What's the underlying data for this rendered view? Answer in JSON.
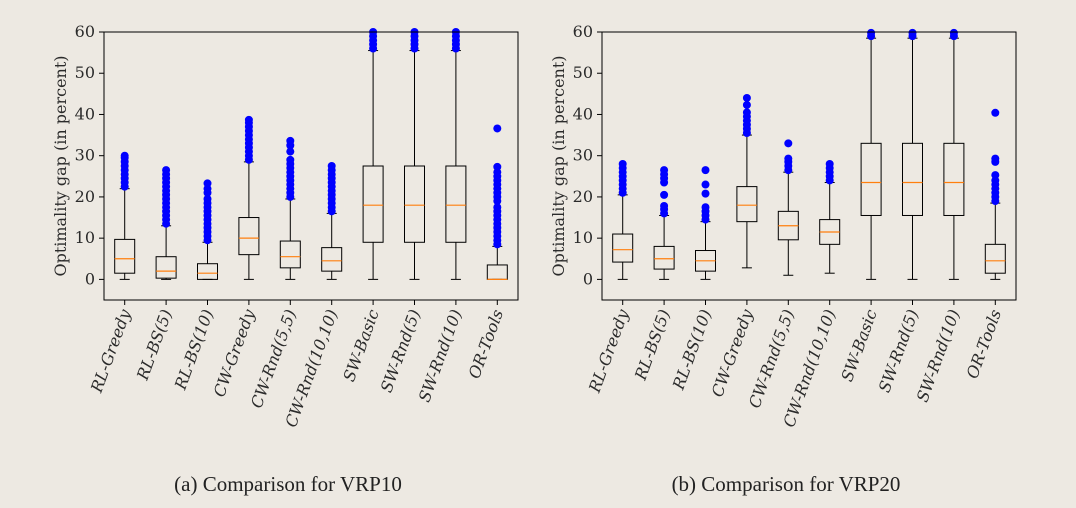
{
  "chart_data": [
    {
      "type": "box",
      "caption": "(a) Comparison for VRP10",
      "ylabel": "Optimality gap (in percent)",
      "ylim": [
        -5,
        60
      ],
      "yticks": [
        0,
        10,
        20,
        30,
        40,
        50,
        60
      ],
      "categories": [
        "RL-Greedy",
        "RL-BS(5)",
        "RL-BS(10)",
        "CW-Greedy",
        "CW-Rnd(5,5)",
        "CW-Rnd(10,10)",
        "SW-Basic",
        "SW-Rnd(5)",
        "SW-Rnd(10)",
        "OR-Tools"
      ],
      "boxes": [
        {
          "whisker_low": 0,
          "q1": 1.5,
          "median": 5,
          "q3": 9.7,
          "whisker_high": 22,
          "outliers": [
            22.5,
            23.5,
            24.5,
            25.5,
            26.5,
            27.5,
            28.5,
            29.5,
            30
          ]
        },
        {
          "whisker_low": 0,
          "q1": 0.3,
          "median": 2,
          "q3": 5.5,
          "whisker_high": 13,
          "outliers": [
            13.5,
            14.5,
            15.5,
            16.5,
            17.5,
            18.5,
            19.5,
            20.5,
            21.5,
            22.5,
            23.5,
            24.5,
            25.5,
            26.5
          ]
        },
        {
          "whisker_low": 0,
          "q1": 0,
          "median": 1.5,
          "q3": 3.8,
          "whisker_high": 9,
          "outliers": [
            9.5,
            10.5,
            11.5,
            12.5,
            13.5,
            14.5,
            15.5,
            16.5,
            17.5,
            18.5,
            19.5,
            21,
            22,
            23.3
          ]
        },
        {
          "whisker_low": 0,
          "q1": 6,
          "median": 10,
          "q3": 15,
          "whisker_high": 28.5,
          "outliers": [
            29,
            30,
            31,
            32,
            33,
            34,
            35,
            36,
            37,
            38,
            38.7
          ]
        },
        {
          "whisker_low": 0,
          "q1": 2.8,
          "median": 5.5,
          "q3": 9.3,
          "whisker_high": 19.5,
          "outliers": [
            20,
            21,
            22,
            23,
            24,
            25,
            26,
            27,
            28,
            29,
            31,
            32.5,
            33.6
          ]
        },
        {
          "whisker_low": 0,
          "q1": 2,
          "median": 4.5,
          "q3": 7.7,
          "whisker_high": 16,
          "outliers": [
            16.5,
            17.5,
            18.5,
            19.5,
            20.5,
            21.5,
            22.5,
            23.5,
            24.5,
            25.5,
            26.5,
            27.5
          ]
        },
        {
          "whisker_low": 0,
          "q1": 9,
          "median": 18,
          "q3": 27.5,
          "whisker_high": 55.5,
          "outliers": [
            56,
            57,
            58,
            59,
            60
          ]
        },
        {
          "whisker_low": 0,
          "q1": 9,
          "median": 18,
          "q3": 27.5,
          "whisker_high": 55.5,
          "outliers": [
            56,
            57,
            58,
            59,
            60
          ]
        },
        {
          "whisker_low": 0,
          "q1": 9,
          "median": 18,
          "q3": 27.5,
          "whisker_high": 55.5,
          "outliers": [
            56,
            57,
            58,
            59,
            60
          ]
        },
        {
          "whisker_low": 0,
          "q1": 0,
          "median": 0,
          "q3": 3.5,
          "whisker_high": 8,
          "outliers": [
            8.5,
            9.5,
            10.5,
            11.5,
            12.5,
            13.5,
            14.5,
            15.5,
            16.5,
            17.5,
            19,
            20,
            21,
            22,
            23,
            24,
            25,
            26,
            27.3,
            36.6
          ]
        }
      ]
    },
    {
      "type": "box",
      "caption": "(b) Comparison for VRP20",
      "ylabel": "Optimality gap (in percent)",
      "ylim": [
        -5,
        60
      ],
      "yticks": [
        0,
        10,
        20,
        30,
        40,
        50,
        60
      ],
      "categories": [
        "RL-Greedy",
        "RL-BS(5)",
        "RL-BS(10)",
        "CW-Greedy",
        "CW-Rnd(5,5)",
        "CW-Rnd(10,10)",
        "SW-Basic",
        "SW-Rnd(5)",
        "SW-Rnd(10)",
        "OR-Tools"
      ],
      "boxes": [
        {
          "whisker_low": 0,
          "q1": 4.2,
          "median": 7.2,
          "q3": 11,
          "whisker_high": 20.5,
          "outliers": [
            21,
            22,
            23,
            24,
            25,
            26,
            27,
            28
          ]
        },
        {
          "whisker_low": 0,
          "q1": 2.5,
          "median": 5,
          "q3": 8,
          "whisker_high": 15.5,
          "outliers": [
            16,
            17,
            17.8,
            20.5,
            23.5,
            24.5,
            25.5,
            26.5
          ]
        },
        {
          "whisker_low": 0,
          "q1": 2,
          "median": 4.5,
          "q3": 7,
          "whisker_high": 14,
          "outliers": [
            14.5,
            15.5,
            16.5,
            17.5,
            20.8,
            23,
            26.5
          ]
        },
        {
          "whisker_low": 2.8,
          "q1": 14,
          "median": 18,
          "q3": 22.5,
          "whisker_high": 35,
          "outliers": [
            35.5,
            36.5,
            37.5,
            38.5,
            39.5,
            40.5,
            42.3,
            44
          ]
        },
        {
          "whisker_low": 1,
          "q1": 9.6,
          "median": 13,
          "q3": 16.5,
          "whisker_high": 26,
          "outliers": [
            26.5,
            27.5,
            28.5,
            29.3,
            33
          ]
        },
        {
          "whisker_low": 1.5,
          "q1": 8.5,
          "median": 11.5,
          "q3": 14.5,
          "whisker_high": 23.5,
          "outliers": [
            24,
            25,
            26,
            27,
            28
          ]
        },
        {
          "whisker_low": 0,
          "q1": 15.5,
          "median": 23.5,
          "q3": 33,
          "whisker_high": 58.5,
          "outliers": [
            59,
            59.8
          ]
        },
        {
          "whisker_low": 0,
          "q1": 15.5,
          "median": 23.5,
          "q3": 33,
          "whisker_high": 58.5,
          "outliers": [
            59,
            59.8
          ]
        },
        {
          "whisker_low": 0,
          "q1": 15.5,
          "median": 23.5,
          "q3": 33,
          "whisker_high": 58.5,
          "outliers": [
            59,
            59.8
          ]
        },
        {
          "whisker_low": 0,
          "q1": 1.5,
          "median": 4.5,
          "q3": 8.5,
          "whisker_high": 18.5,
          "outliers": [
            19,
            20,
            21,
            22,
            23,
            24,
            25.3,
            28.5,
            29.3,
            40.4
          ]
        }
      ]
    }
  ],
  "colors": {
    "background": "#ede9e2",
    "box": "#000000",
    "median": "#ff7f0e",
    "outlier": "#0000ff",
    "axis": "#000000",
    "text": "#2b2b2b"
  }
}
